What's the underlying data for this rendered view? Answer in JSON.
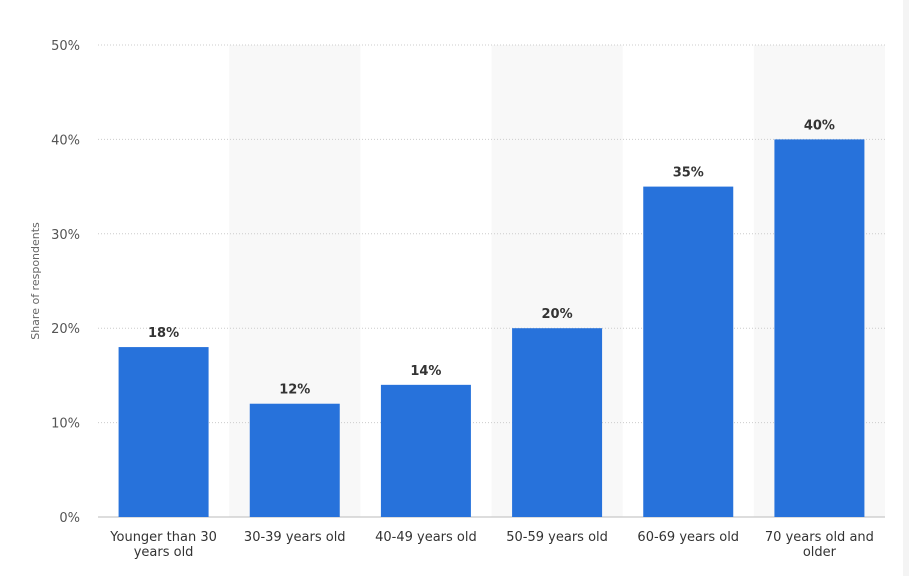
{
  "chart_data": {
    "type": "bar",
    "categories": [
      "Younger than 30 years old",
      "30-39 years old",
      "40-49 years old",
      "50-59 years old",
      "60-69 years old",
      "70 years old and older"
    ],
    "category_lines": [
      [
        "Younger than 30",
        "years old"
      ],
      [
        "30-39 years old"
      ],
      [
        "40-49 years old"
      ],
      [
        "50-59 years old"
      ],
      [
        "60-69 years old"
      ],
      [
        "70 years old and",
        "older"
      ]
    ],
    "values": [
      18,
      12,
      14,
      20,
      35,
      40
    ],
    "data_labels": [
      "18%",
      "12%",
      "14%",
      "20%",
      "35%",
      "40%"
    ],
    "title": "",
    "xlabel": "",
    "ylabel": "Share of respondents",
    "ylim": [
      0,
      50
    ],
    "yticks": [
      "0%",
      "10%",
      "20%",
      "30%",
      "40%",
      "50%"
    ],
    "grid": true,
    "legend": "none",
    "colors": {
      "bar": "#2772DB",
      "alt_band": "#F8F8F8",
      "grid": "#CCCCCC"
    }
  }
}
